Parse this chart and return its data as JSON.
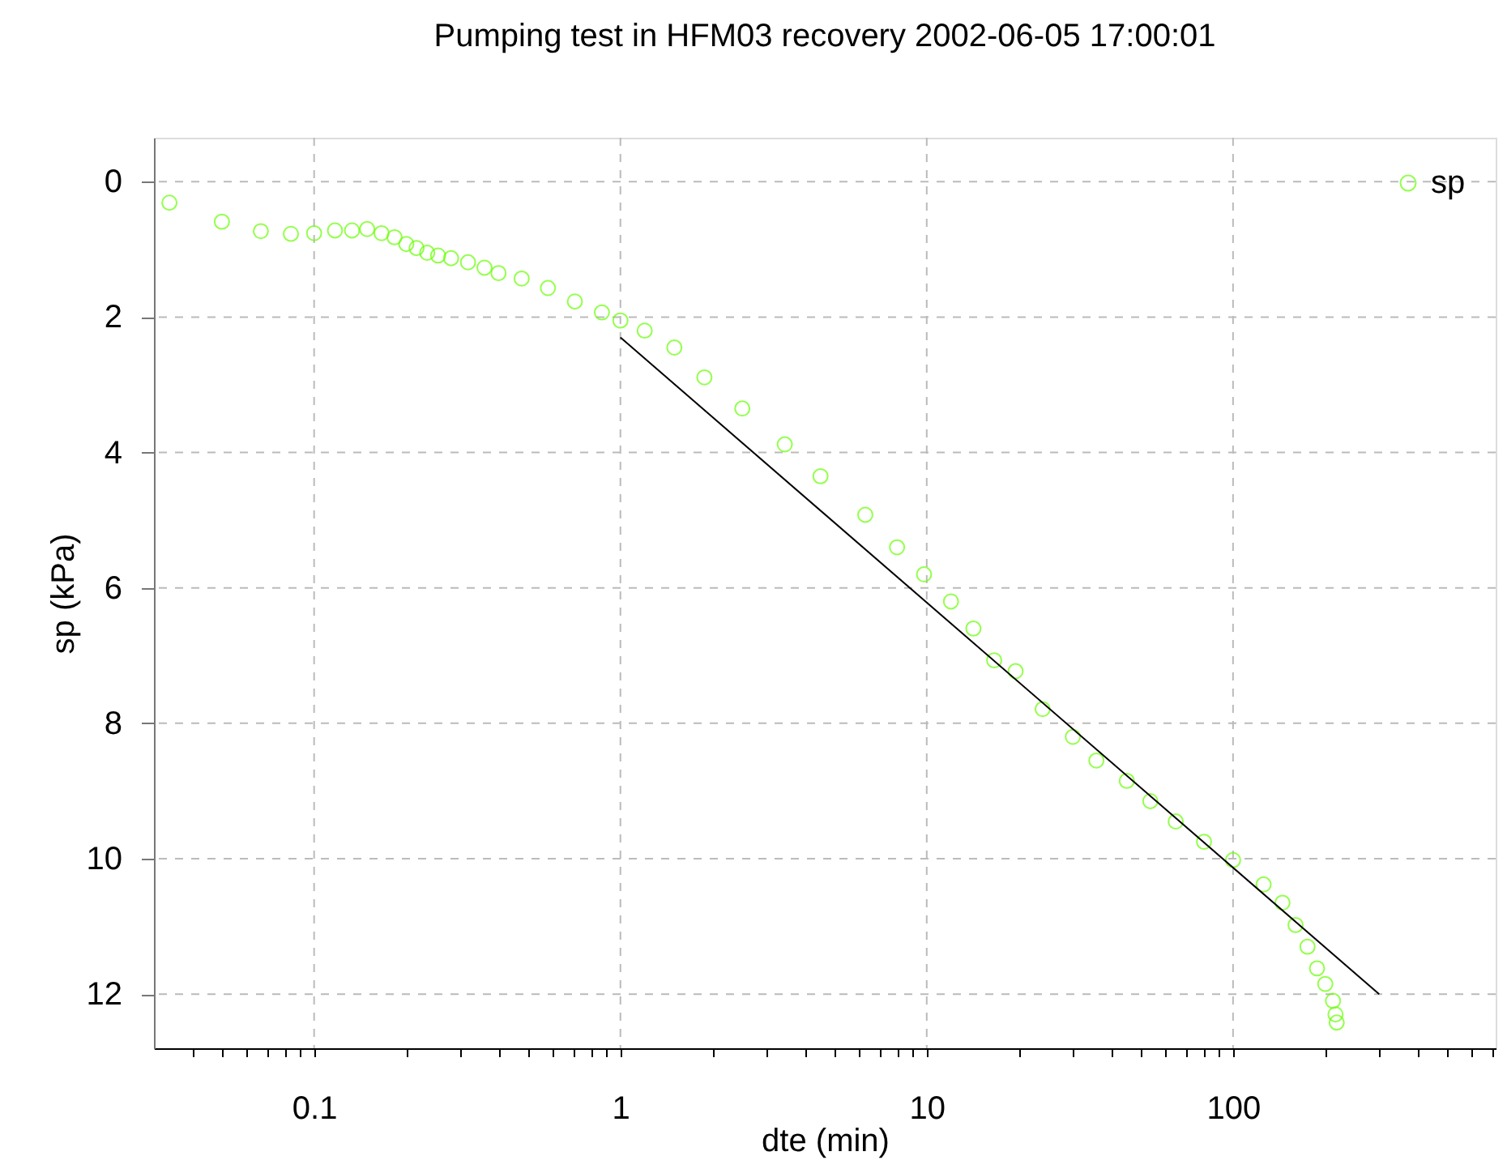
{
  "chart_data": {
    "type": "scatter",
    "title": "Pumping test in HFM03  recovery 2002-06-05 17:00:01",
    "xlabel": "dte (min)",
    "ylabel": "sp (kPa)",
    "log": "x",
    "grid": true,
    "legend": "top right",
    "marker": "circle",
    "xlim": [
      0.03,
      720
    ],
    "ylim": [
      12.8,
      -0.65
    ],
    "xticks": [
      {
        "value": 0.04,
        "label": null
      },
      {
        "value": 0.05,
        "label": null
      },
      {
        "value": 0.06,
        "label": null
      },
      {
        "value": 0.07,
        "label": null
      },
      {
        "value": 0.08,
        "label": null
      },
      {
        "value": 0.09,
        "label": null
      },
      0.1,
      {
        "value": 0.2,
        "label": null
      },
      {
        "value": 0.3,
        "label": null
      },
      {
        "value": 0.4,
        "label": null
      },
      {
        "value": 0.5,
        "label": null
      },
      {
        "value": 0.6,
        "label": null
      },
      {
        "value": 0.7,
        "label": null
      },
      {
        "value": 0.8,
        "label": null
      },
      {
        "value": 0.9,
        "label": null
      },
      1,
      {
        "value": 2,
        "label": null
      },
      {
        "value": 3,
        "label": null
      },
      {
        "value": 4,
        "label": null
      },
      {
        "value": 5,
        "label": null
      },
      {
        "value": 6,
        "label": null
      },
      {
        "value": 7,
        "label": null
      },
      {
        "value": 8,
        "label": null
      },
      {
        "value": 9,
        "label": null
      },
      10,
      {
        "value": 20,
        "label": null
      },
      {
        "value": 30,
        "label": null
      },
      {
        "value": 40,
        "label": null
      },
      {
        "value": 50,
        "label": null
      },
      {
        "value": 60,
        "label": null
      },
      {
        "value": 70,
        "label": null
      },
      {
        "value": 80,
        "label": null
      },
      {
        "value": 90,
        "label": null
      },
      100,
      {
        "value": 200,
        "label": null
      },
      {
        "value": 300,
        "label": null
      },
      {
        "value": 400,
        "label": null
      },
      {
        "value": 500,
        "label": null
      },
      {
        "value": 600,
        "label": null
      },
      {
        "value": 700,
        "label": null
      }
    ],
    "yticks": [
      0,
      2,
      4,
      6,
      8,
      10,
      12
    ],
    "series": [
      {
        "name": "sp",
        "color": "#66ff00",
        "x": [
          0.0337,
          0.05,
          0.067,
          0.084,
          0.1,
          0.117,
          0.133,
          0.149,
          0.166,
          0.183,
          0.2,
          0.216,
          0.234,
          0.254,
          0.28,
          0.318,
          0.36,
          0.4,
          0.476,
          0.58,
          0.71,
          0.87,
          1.0,
          1.2,
          1.5,
          1.88,
          2.5,
          3.44,
          4.5,
          6.3,
          8,
          9.8,
          12,
          14.2,
          16.6,
          19.5,
          23.9,
          30,
          35.8,
          45,
          53.7,
          65,
          80.4,
          100,
          125.8,
          145,
          160,
          175,
          188,
          200,
          212,
          216,
          218
        ],
        "values": [
          0.31,
          0.59,
          0.73,
          0.77,
          0.76,
          0.72,
          0.72,
          0.7,
          0.76,
          0.82,
          0.92,
          0.98,
          1.05,
          1.09,
          1.13,
          1.19,
          1.27,
          1.35,
          1.43,
          1.57,
          1.77,
          1.93,
          2.05,
          2.2,
          2.45,
          2.89,
          3.35,
          3.88,
          4.35,
          4.92,
          5.4,
          5.8,
          6.2,
          6.6,
          7.07,
          7.23,
          7.79,
          8.2,
          8.55,
          8.85,
          9.15,
          9.45,
          9.75,
          10.02,
          10.38,
          10.65,
          10.98,
          11.3,
          11.62,
          11.85,
          12.1,
          12.3,
          12.42
        ]
      },
      {
        "type": "line",
        "marker": "none",
        "color": "#000000",
        "x": [
          1,
          300
        ],
        "values": [
          2.3,
          12
        ]
      }
    ]
  }
}
